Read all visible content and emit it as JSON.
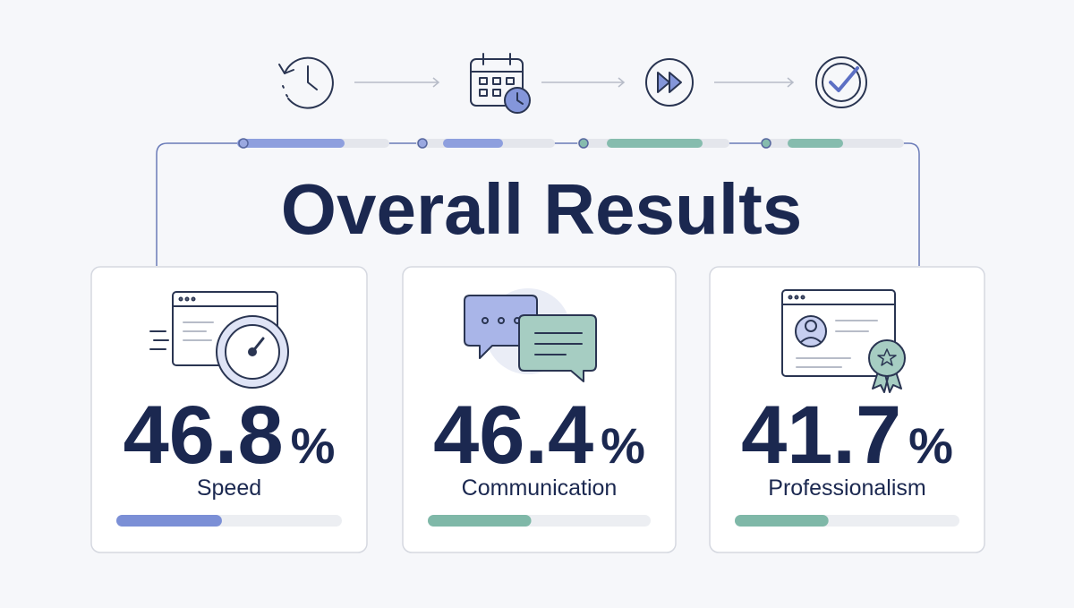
{
  "title": "Overall Results",
  "bar_range": [
    0,
    100
  ],
  "cards": [
    {
      "value": 46.8,
      "unit": "%",
      "label": "Speed",
      "color": "#7b8fd6"
    },
    {
      "value": 46.4,
      "unit": "%",
      "label": "Communication",
      "color": "#7fb8a8"
    },
    {
      "value": 41.7,
      "unit": "%",
      "label": "Professionalism",
      "color": "#7fb8a8"
    }
  ]
}
